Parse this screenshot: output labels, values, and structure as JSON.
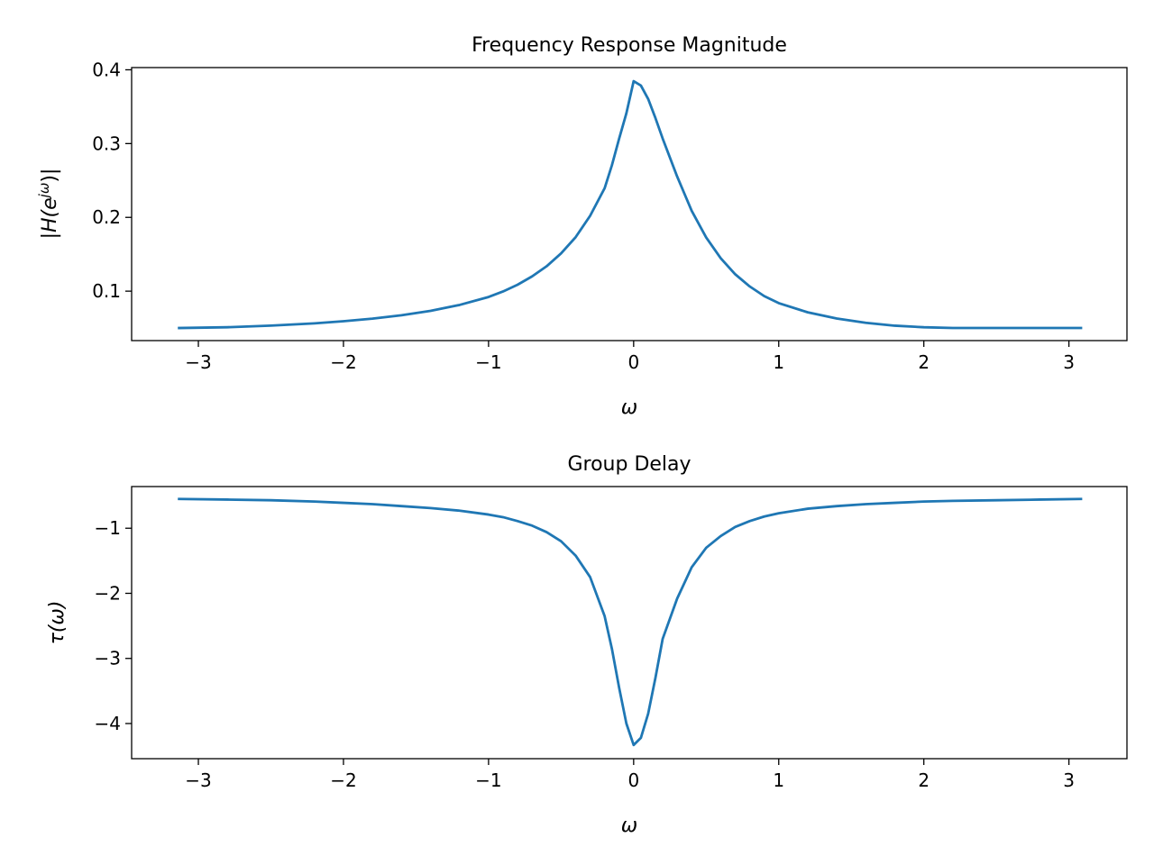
{
  "chart_data": [
    {
      "type": "line",
      "title": "Frequency Response Magnitude",
      "xlabel": "ω",
      "ylabel": "|H(e",
      "ylabel_sup": "jω",
      "ylabel_end": ")|",
      "xlim": [
        -3.46,
        3.4
      ],
      "ylim": [
        0.033,
        0.403
      ],
      "xticks": [
        -3,
        -2,
        -1,
        0,
        1,
        2,
        3
      ],
      "xtick_labels": [
        "−3",
        "−2",
        "−1",
        "0",
        "1",
        "2",
        "3"
      ],
      "yticks": [
        0.1,
        0.2,
        0.3,
        0.4
      ],
      "ytick_labels": [
        "0.1",
        "0.2",
        "0.3",
        "0.4"
      ],
      "grid": false,
      "series_color": "#1f77b4",
      "x": [
        -3.1416,
        -2.8,
        -2.5,
        -2.2,
        -2.0,
        -1.8,
        -1.6,
        -1.4,
        -1.2,
        -1.0,
        -0.9,
        -0.8,
        -0.7,
        -0.6,
        -0.5,
        -0.4,
        -0.3,
        -0.2,
        -0.15,
        -0.1,
        -0.05,
        0.0,
        0.05,
        0.1,
        0.15,
        0.2,
        0.3,
        0.4,
        0.5,
        0.6,
        0.7,
        0.8,
        0.9,
        1.0,
        1.2,
        1.4,
        1.6,
        1.8,
        2.0,
        2.2,
        2.5,
        2.8,
        3.0917
      ],
      "y": [
        0.05,
        0.0511,
        0.0533,
        0.0564,
        0.0592,
        0.0628,
        0.0674,
        0.0733,
        0.0813,
        0.0921,
        0.0996,
        0.1087,
        0.12,
        0.1337,
        0.1512,
        0.1731,
        0.2021,
        0.2395,
        0.2705,
        0.3067,
        0.3411,
        0.3846,
        0.3787,
        0.3605,
        0.3347,
        0.3069,
        0.2553,
        0.2089,
        0.1727,
        0.1447,
        0.1229,
        0.1064,
        0.0933,
        0.0838,
        0.0713,
        0.0629,
        0.0571,
        0.0532,
        0.0511,
        0.0501,
        0.0501,
        0.0501,
        0.0501
      ]
    },
    {
      "type": "line",
      "title": "Group Delay",
      "xlabel": "ω",
      "ylabel": "τ(ω)",
      "xlim": [
        -3.46,
        3.4
      ],
      "ylim": [
        -4.54,
        -0.36
      ],
      "xticks": [
        -3,
        -2,
        -1,
        0,
        1,
        2,
        3
      ],
      "xtick_labels": [
        "−3",
        "−2",
        "−1",
        "0",
        "1",
        "2",
        "3"
      ],
      "yticks": [
        -1,
        -2,
        -3,
        -4
      ],
      "ytick_labels": [
        "−1",
        "−2",
        "−3",
        "−4"
      ],
      "grid": false,
      "series_color": "#1f77b4",
      "x": [
        -3.1416,
        -2.8,
        -2.5,
        -2.2,
        -2.0,
        -1.8,
        -1.6,
        -1.4,
        -1.2,
        -1.0,
        -0.9,
        -0.8,
        -0.7,
        -0.6,
        -0.5,
        -0.4,
        -0.3,
        -0.2,
        -0.15,
        -0.1,
        -0.05,
        0.0,
        0.05,
        0.1,
        0.15,
        0.2,
        0.3,
        0.4,
        0.5,
        0.6,
        0.7,
        0.8,
        0.9,
        1.0,
        1.2,
        1.4,
        1.6,
        1.8,
        2.0,
        2.2,
        2.5,
        2.8,
        3.0917
      ],
      "y": [
        -0.55,
        -0.56,
        -0.57,
        -0.59,
        -0.61,
        -0.63,
        -0.66,
        -0.69,
        -0.73,
        -0.79,
        -0.83,
        -0.89,
        -0.96,
        -1.06,
        -1.2,
        -1.42,
        -1.75,
        -2.35,
        -2.85,
        -3.45,
        -4.0,
        -4.33,
        -4.22,
        -3.85,
        -3.3,
        -2.7,
        -2.08,
        -1.6,
        -1.3,
        -1.12,
        -0.98,
        -0.89,
        -0.82,
        -0.77,
        -0.7,
        -0.66,
        -0.63,
        -0.61,
        -0.59,
        -0.58,
        -0.57,
        -0.56,
        -0.55
      ]
    }
  ]
}
